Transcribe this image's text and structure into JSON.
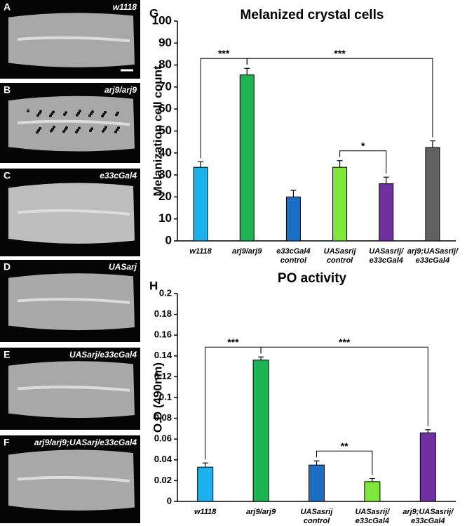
{
  "image_panels": [
    {
      "letter": "A",
      "label": "w1118"
    },
    {
      "letter": "B",
      "label": "arj9/arj9"
    },
    {
      "letter": "C",
      "label": "e33cGal4"
    },
    {
      "letter": "D",
      "label": "UASarj"
    },
    {
      "letter": "E",
      "label": "UASarj/e33cGal4"
    },
    {
      "letter": "F",
      "label": "arj9/arj9;UASarj/e33cGal4"
    }
  ],
  "chart_data": [
    {
      "type": "bar",
      "panel": "G",
      "title": "Melanized crystal cells",
      "y_label": "Melanization cell count",
      "categories": [
        "w1118",
        "arj9/arj9",
        "e33cGal4\ncontrol",
        "UASasrij\ncontrol",
        "UASasrij/\ne33cGal4",
        "arj9;UASasrij/\ne33cGal4"
      ],
      "values": [
        33.5,
        75.5,
        20,
        33.5,
        26,
        42.5
      ],
      "errors": [
        2.5,
        3,
        3,
        3,
        3,
        3
      ],
      "colors": [
        "#1cb0ee",
        "#1cb452",
        "#1a6fc4",
        "#80e83c",
        "#7030a0",
        "#606060"
      ],
      "ylim": [
        0,
        100
      ],
      "yticks": [
        0,
        10,
        20,
        30,
        40,
        50,
        60,
        70,
        80,
        90,
        100
      ],
      "annotations": [
        {
          "text": "***",
          "from": 0,
          "to": 1
        },
        {
          "text": "***",
          "from": 1,
          "to": 5
        },
        {
          "text": "*",
          "from": 3,
          "to": 4
        }
      ]
    },
    {
      "type": "bar",
      "panel": "H",
      "title": "PO activity",
      "y_label": "O.D (490nm)",
      "categories": [
        "w1118",
        "arj9/arj9",
        "UASasrij\ncontrol",
        "UASasrij/\ne33cGal4",
        "arj9;UASasrij/\ne33cGal4"
      ],
      "values": [
        0.033,
        0.136,
        0.035,
        0.019,
        0.066
      ],
      "errors": [
        0.004,
        0.003,
        0.004,
        0.003,
        0.003
      ],
      "colors": [
        "#1cb0ee",
        "#1cb452",
        "#1a6fc4",
        "#80e83c",
        "#7030a0"
      ],
      "ylim": [
        0,
        0.2
      ],
      "yticks": [
        0,
        0.02,
        0.04,
        0.06,
        0.08,
        0.1,
        0.12,
        0.14,
        0.16,
        0.18,
        0.2
      ],
      "annotations": [
        {
          "text": "***",
          "from": 0,
          "to": 1
        },
        {
          "text": "***",
          "from": 1,
          "to": 4
        },
        {
          "text": "**",
          "from": 2,
          "to": 3
        }
      ]
    }
  ]
}
